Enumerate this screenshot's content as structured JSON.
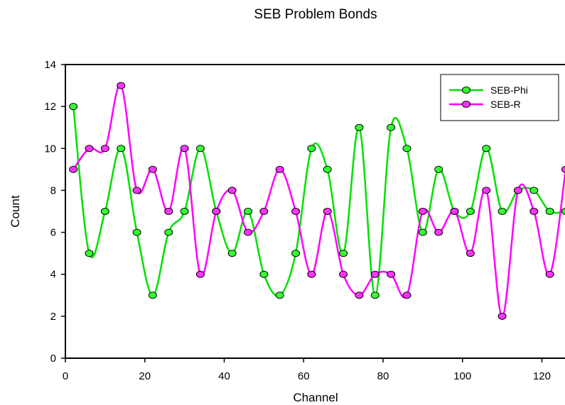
{
  "chart_data": {
    "type": "line",
    "title": "SEB Problem Bonds",
    "xlabel": "Channel",
    "ylabel": "Count",
    "xlim": [
      0,
      126
    ],
    "ylim": [
      0,
      14
    ],
    "xticks": [
      0,
      20,
      40,
      60,
      80,
      100,
      120
    ],
    "yticks": [
      0,
      2,
      4,
      6,
      8,
      10,
      12,
      14
    ],
    "grid": false,
    "legend_position": "top-right",
    "smooth": true,
    "series": [
      {
        "name": "SEB-Phi",
        "color": "#00e000",
        "marker_color": "#33ff33",
        "x": [
          2,
          6,
          10,
          14,
          18,
          22,
          26,
          30,
          34,
          38,
          42,
          46,
          50,
          54,
          58,
          62,
          66,
          70,
          74,
          78,
          82,
          86,
          90,
          94,
          98,
          102,
          106,
          110,
          114,
          118,
          122,
          126
        ],
        "y": [
          12,
          5,
          7,
          10,
          6,
          3,
          6,
          7,
          10,
          7,
          5,
          7,
          4,
          3,
          5,
          10,
          9,
          5,
          11,
          3,
          11,
          10,
          6,
          9,
          7,
          7,
          10,
          7,
          8,
          8,
          7,
          7
        ]
      },
      {
        "name": "SEB-R",
        "color": "#ff00ff",
        "marker_color": "#ff33ff",
        "x": [
          2,
          6,
          10,
          14,
          18,
          22,
          26,
          30,
          34,
          38,
          42,
          46,
          50,
          54,
          58,
          62,
          66,
          70,
          74,
          78,
          82,
          86,
          90,
          94,
          98,
          102,
          106,
          110,
          114,
          118,
          122,
          126
        ],
        "y": [
          9,
          10,
          10,
          13,
          8,
          9,
          7,
          10,
          4,
          7,
          8,
          6,
          7,
          9,
          7,
          4,
          7,
          4,
          3,
          4,
          4,
          3,
          7,
          6,
          7,
          5,
          8,
          2,
          8,
          7,
          4,
          9
        ]
      }
    ]
  }
}
